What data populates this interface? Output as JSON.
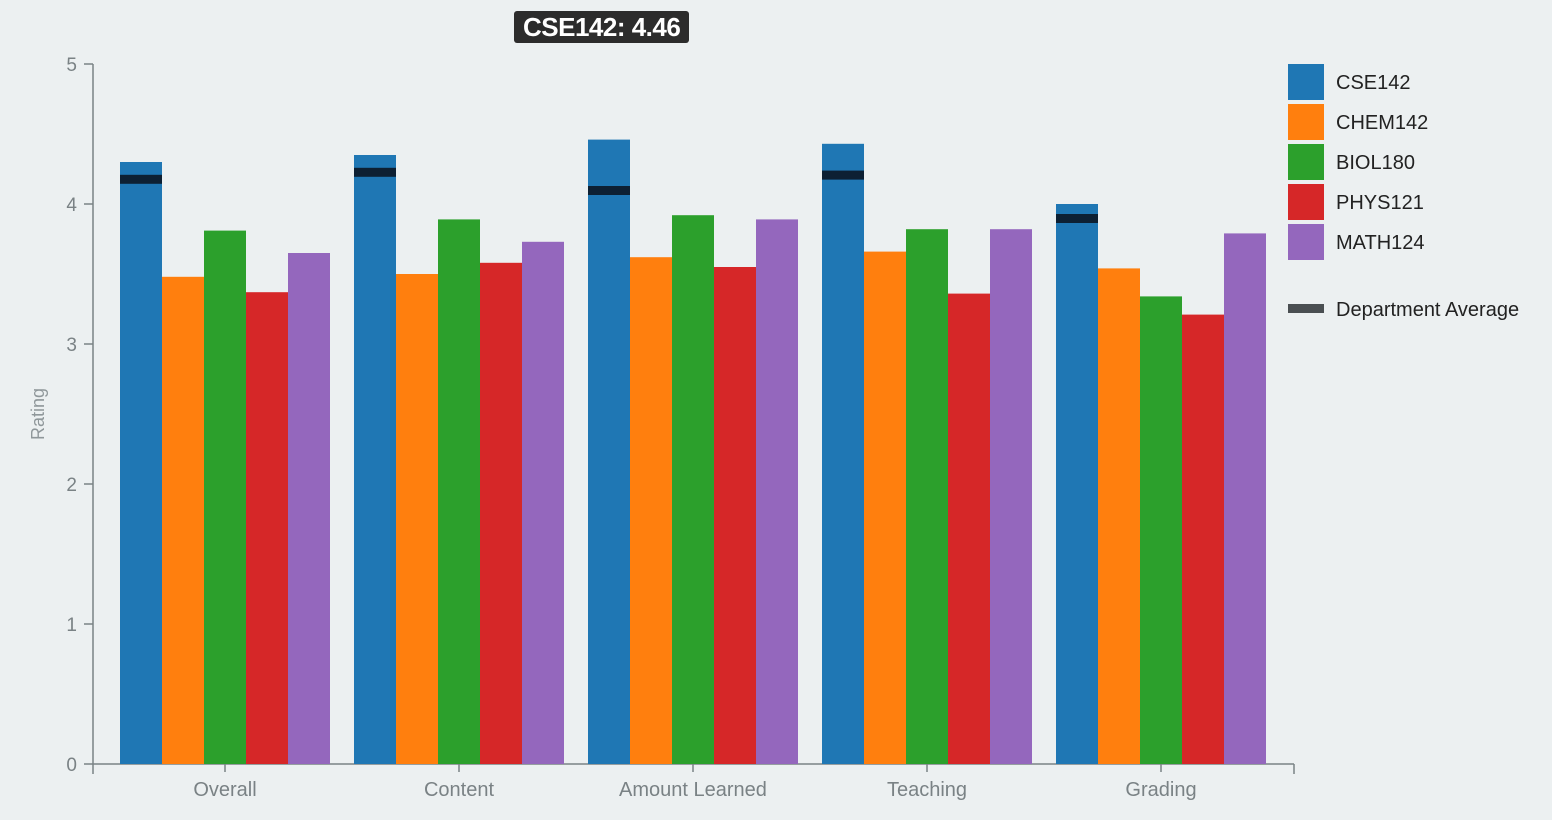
{
  "tooltip": {
    "series": "CSE142",
    "value": "4.46",
    "text": "CSE142: 4.46"
  },
  "chart_data": {
    "type": "bar",
    "title": "",
    "xlabel": "",
    "ylabel": "Rating",
    "ylim": [
      0,
      5
    ],
    "yticks": [
      "0",
      "1",
      "2",
      "3",
      "4",
      "5"
    ],
    "grid": false,
    "legend_position": "right",
    "categories": [
      "Overall",
      "Content",
      "Amount Learned",
      "Teaching",
      "Grading"
    ],
    "series": [
      {
        "name": "CSE142",
        "color": "#1f77b4",
        "values": [
          4.3,
          4.35,
          4.46,
          4.43,
          4.0
        ]
      },
      {
        "name": "CHEM142",
        "color": "#ff7f0e",
        "values": [
          3.48,
          3.5,
          3.62,
          3.66,
          3.54
        ]
      },
      {
        "name": "BIOL180",
        "color": "#2ca02c",
        "values": [
          3.81,
          3.89,
          3.92,
          3.82,
          3.34
        ]
      },
      {
        "name": "PHYS121",
        "color": "#d62728",
        "values": [
          3.37,
          3.58,
          3.55,
          3.36,
          3.21
        ]
      },
      {
        "name": "MATH124",
        "color": "#9467bd",
        "values": [
          3.65,
          3.73,
          3.89,
          3.82,
          3.79
        ]
      }
    ],
    "department_average": {
      "name": "Department Average",
      "color": "#0d2033",
      "legend_color": "#4a4f52",
      "series": "CSE142",
      "values": [
        4.18,
        4.23,
        4.1,
        4.21,
        3.9
      ]
    }
  }
}
